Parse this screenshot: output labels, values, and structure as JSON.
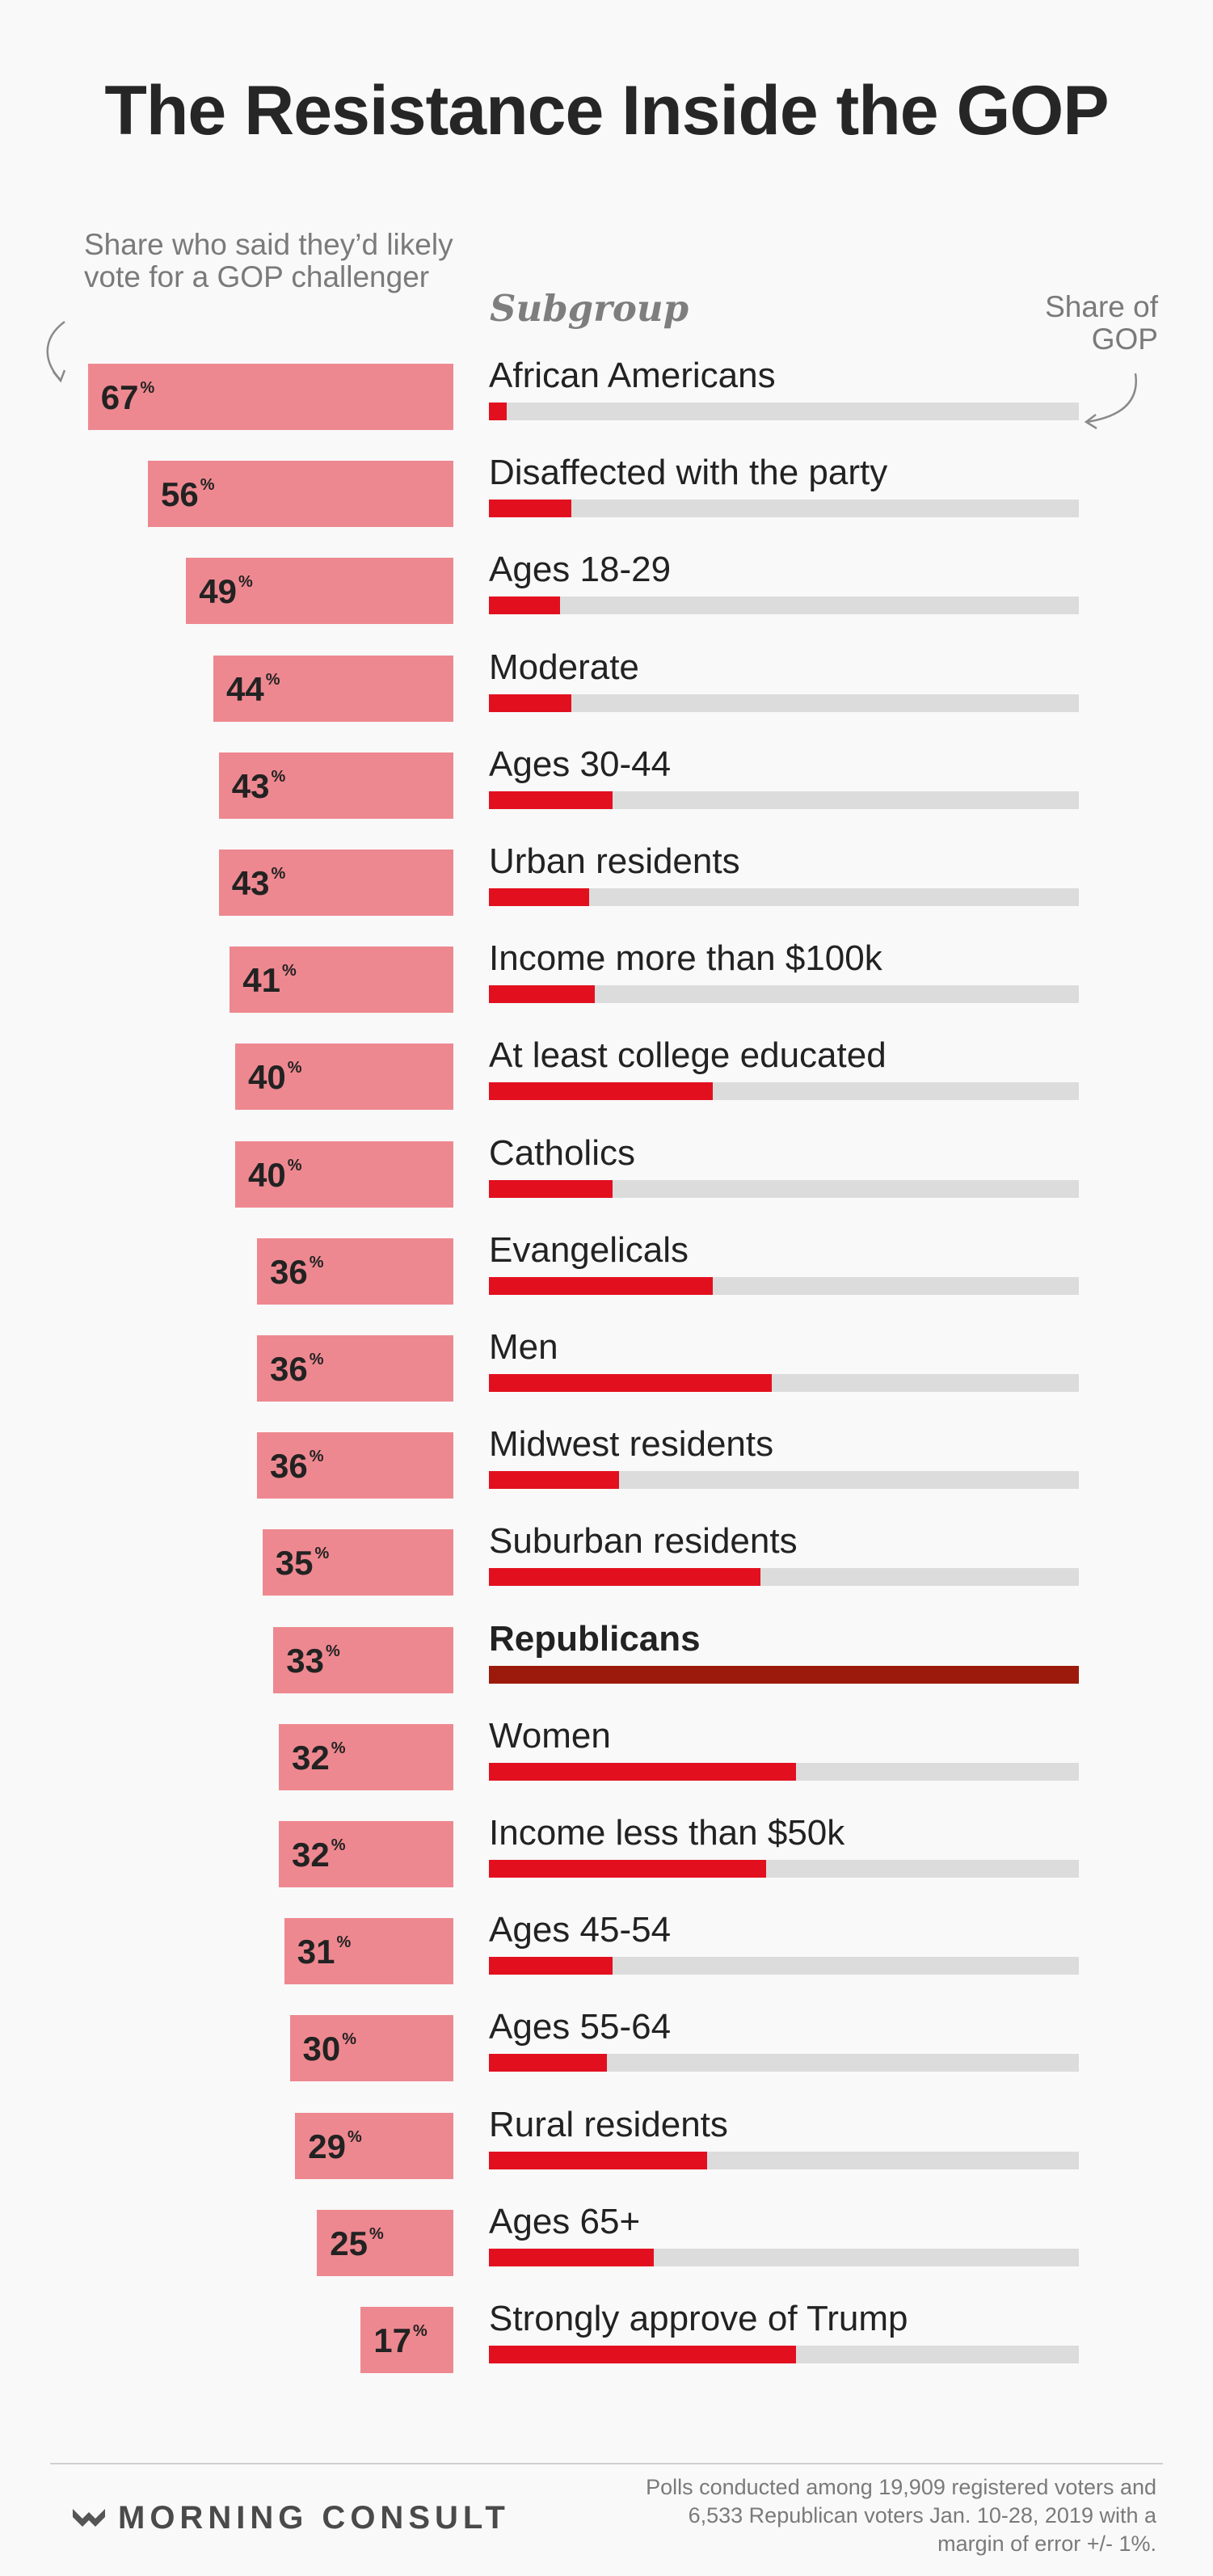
{
  "title": "The Resistance Inside the GOP",
  "left_note": "Share who said they’d likely vote for a GOP challenger",
  "subgroup_header": "Subgroup",
  "right_note": "Share of GOP",
  "percent_symbol": "%",
  "brand": "MORNING CONSULT",
  "footnote": "Polls conducted among 19,909 registered voters and 6,533 Republican voters Jan. 10-28, 2019 with a margin of error +/- 1%.",
  "colors": {
    "left_bar": "#ee8890",
    "share_bar": "#e2101f",
    "republicans_bar": "#9b1a0c",
    "track": "#dcdcdc"
  },
  "chart_data": {
    "type": "bar",
    "categories": [
      "African Americans",
      "Disaffected with the party",
      "Ages 18-29",
      "Moderate",
      "Ages 30-44",
      "Urban residents",
      "Income more than $100k",
      "At least college educated",
      "Catholics",
      "Evangelicals",
      "Men",
      "Midwest residents",
      "Suburban residents",
      "Republicans",
      "Women",
      "Income less than $50k",
      "Ages 45-54",
      "Ages 55-64",
      "Rural residents",
      "Ages 65+",
      "Strongly approve of Trump"
    ],
    "series": [
      {
        "name": "Share who said they’d likely vote for a GOP challenger",
        "values": [
          67,
          56,
          49,
          44,
          43,
          43,
          41,
          40,
          40,
          36,
          36,
          36,
          35,
          33,
          32,
          32,
          31,
          30,
          29,
          25,
          17
        ]
      },
      {
        "name": "Share of GOP",
        "values": [
          3,
          14,
          12,
          14,
          21,
          17,
          18,
          38,
          21,
          38,
          48,
          22,
          46,
          100,
          52,
          47,
          21,
          20,
          37,
          28,
          52
        ]
      }
    ],
    "highlight": "Republicans",
    "xlim": [
      0,
      100
    ]
  }
}
